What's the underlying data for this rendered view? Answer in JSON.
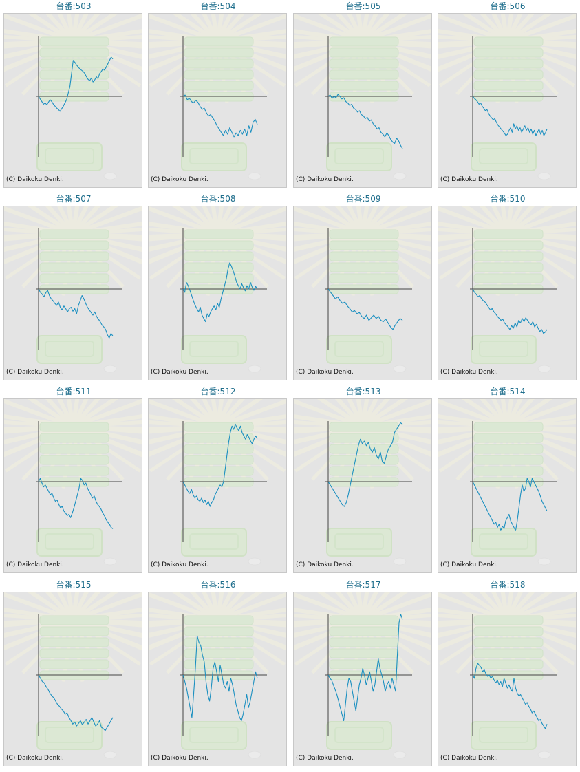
{
  "copyright": "(C) Daikoku Denki.",
  "colors": {
    "line": "#1a8fc0",
    "axis": "#444444",
    "title": "#1f6e8c",
    "panel": "#e4e4e4"
  },
  "chart_data": [
    {
      "type": "line",
      "title": "台番:503",
      "y": [
        0,
        -4,
        -8,
        -12,
        -10,
        -13,
        -9,
        -5,
        -8,
        -12,
        -15,
        -18,
        -20,
        -23,
        -19,
        -15,
        -10,
        -5,
        5,
        15,
        35,
        55,
        52,
        48,
        45,
        42,
        40,
        38,
        35,
        30,
        26,
        24,
        28,
        22,
        25,
        30,
        27,
        35,
        38,
        42,
        40,
        45,
        50,
        55,
        60,
        57
      ]
    },
    {
      "type": "line",
      "title": "台番:504",
      "y": [
        0,
        2,
        -5,
        -3,
        -8,
        -10,
        -6,
        -9,
        -15,
        -20,
        -18,
        -25,
        -30,
        -28,
        -33,
        -38,
        -45,
        -50,
        -55,
        -60,
        -52,
        -58,
        -48,
        -55,
        -62,
        -56,
        -60,
        -52,
        -58,
        -50,
        -60,
        -45,
        -55,
        -40,
        -35,
        -43
      ]
    },
    {
      "type": "line",
      "title": "台番:505",
      "y": [
        0,
        2,
        -3,
        0,
        -2,
        3,
        0,
        -4,
        -2,
        -8,
        -10,
        -14,
        -12,
        -18,
        -20,
        -24,
        -22,
        -28,
        -30,
        -34,
        -32,
        -38,
        -36,
        -42,
        -45,
        -50,
        -48,
        -55,
        -58,
        -62,
        -56,
        -60,
        -66,
        -70,
        -72,
        -64,
        -68,
        -75,
        -80
      ]
    },
    {
      "type": "line",
      "title": "台番:506",
      "y": [
        0,
        -3,
        -5,
        -8,
        -12,
        -10,
        -15,
        -18,
        -22,
        -20,
        -26,
        -30,
        -33,
        -36,
        -34,
        -40,
        -44,
        -47,
        -50,
        -53,
        -56,
        -60,
        -58,
        -52,
        -48,
        -55,
        -42,
        -50,
        -45,
        -52,
        -48,
        -55,
        -50,
        -45,
        -52,
        -48,
        -55,
        -50,
        -58,
        -52,
        -60,
        -55,
        -50,
        -58,
        -52,
        -60,
        -56,
        -50
      ]
    },
    {
      "type": "line",
      "title": "台番:507",
      "y": [
        0,
        -5,
        -8,
        -12,
        -6,
        -2,
        -10,
        -15,
        -18,
        -22,
        -25,
        -20,
        -28,
        -32,
        -26,
        -30,
        -35,
        -30,
        -28,
        -34,
        -30,
        -38,
        -25,
        -18,
        -10,
        -15,
        -22,
        -28,
        -32,
        -36,
        -40,
        -35,
        -42,
        -46,
        -50,
        -55,
        -58,
        -62,
        -70,
        -75,
        -68,
        -72
      ]
    },
    {
      "type": "line",
      "title": "台番:508",
      "y": [
        0,
        -5,
        10,
        5,
        -2,
        -10,
        -18,
        -25,
        -30,
        -35,
        -28,
        -40,
        -45,
        -50,
        -38,
        -42,
        -35,
        -30,
        -26,
        -32,
        -22,
        -28,
        -15,
        -5,
        5,
        15,
        30,
        40,
        35,
        28,
        20,
        10,
        5,
        0,
        8,
        2,
        -3,
        5,
        0,
        10,
        3,
        -2,
        4,
        0
      ]
    },
    {
      "type": "line",
      "title": "台番:509",
      "y": [
        0,
        -5,
        -10,
        -15,
        -12,
        -18,
        -22,
        -20,
        -26,
        -30,
        -35,
        -33,
        -38,
        -36,
        -42,
        -45,
        -40,
        -48,
        -44,
        -40,
        -45,
        -42,
        -48,
        -50,
        -46,
        -52,
        -58,
        -62,
        -55,
        -50,
        -45,
        -48
      ]
    },
    {
      "type": "line",
      "title": "台番:510",
      "y": [
        0,
        -5,
        -8,
        -12,
        -10,
        -15,
        -18,
        -20,
        -24,
        -28,
        -32,
        -30,
        -35,
        -38,
        -42,
        -45,
        -48,
        -46,
        -52,
        -55,
        -58,
        -62,
        -56,
        -60,
        -52,
        -58,
        -48,
        -52,
        -45,
        -50,
        -44,
        -48,
        -52,
        -55,
        -50,
        -58,
        -54,
        -60,
        -65,
        -62,
        -68,
        -66,
        -62
      ]
    },
    {
      "type": "line",
      "title": "台番:511",
      "y": [
        0,
        5,
        -2,
        -8,
        -5,
        -10,
        -15,
        -20,
        -18,
        -25,
        -30,
        -28,
        -35,
        -40,
        -38,
        -45,
        -48,
        -52,
        -50,
        -55,
        -48,
        -40,
        -30,
        -20,
        -10,
        5,
        2,
        -5,
        -2,
        -10,
        -15,
        -20,
        -25,
        -22,
        -30,
        -35,
        -38,
        -42,
        -48,
        -52,
        -58,
        -62,
        -65,
        -70,
        -72
      ]
    },
    {
      "type": "line",
      "title": "台番:512",
      "y": [
        0,
        -5,
        -10,
        -15,
        -18,
        -12,
        -20,
        -25,
        -22,
        -28,
        -30,
        -25,
        -32,
        -28,
        -35,
        -30,
        -38,
        -32,
        -28,
        -20,
        -15,
        -10,
        -5,
        -8,
        0,
        20,
        40,
        60,
        75,
        85,
        80,
        88,
        82,
        78,
        85,
        75,
        70,
        65,
        72,
        68,
        62,
        58,
        65,
        70,
        66
      ]
    },
    {
      "type": "line",
      "title": "台番:513",
      "y": [
        0,
        -5,
        -10,
        -15,
        -20,
        -25,
        -30,
        -35,
        -38,
        -32,
        -20,
        -5,
        10,
        25,
        40,
        55,
        65,
        58,
        62,
        55,
        60,
        50,
        45,
        52,
        40,
        35,
        45,
        30,
        28,
        40,
        50,
        55,
        60,
        75,
        80,
        85,
        90,
        88
      ]
    },
    {
      "type": "line",
      "title": "台番:514",
      "y": [
        0,
        -5,
        -10,
        -15,
        -20,
        -25,
        -30,
        -35,
        -40,
        -45,
        -50,
        -55,
        -60,
        -65,
        -62,
        -70,
        -65,
        -75,
        -68,
        -72,
        -60,
        -55,
        -50,
        -60,
        -65,
        -70,
        -75,
        -60,
        -40,
        -20,
        -5,
        -15,
        -10,
        5,
        0,
        -8,
        5,
        0,
        -5,
        -10,
        -15,
        -22,
        -30,
        -35,
        -40,
        -45
      ]
    },
    {
      "type": "line",
      "title": "台番:515",
      "y": [
        0,
        -5,
        -10,
        -12,
        -18,
        -22,
        -28,
        -32,
        -35,
        -40,
        -45,
        -48,
        -52,
        -55,
        -60,
        -58,
        -65,
        -70,
        -75,
        -72,
        -78,
        -74,
        -70,
        -76,
        -72,
        -68,
        -75,
        -70,
        -65,
        -72,
        -78,
        -75,
        -70,
        -80,
        -82,
        -85,
        -80,
        -75,
        -70,
        -65
      ]
    },
    {
      "type": "line",
      "title": "台番:516",
      "y": [
        0,
        -10,
        -20,
        -35,
        -50,
        -65,
        -30,
        10,
        60,
        50,
        45,
        30,
        20,
        -10,
        -30,
        -40,
        -20,
        10,
        20,
        5,
        -10,
        15,
        0,
        -15,
        -20,
        -10,
        -25,
        -5,
        -15,
        -30,
        -45,
        -55,
        -65,
        -70,
        -60,
        -45,
        -30,
        -50,
        -40,
        -25,
        -10,
        5,
        -5
      ]
    },
    {
      "type": "line",
      "title": "台番:517",
      "y": [
        0,
        -5,
        -8,
        -15,
        -22,
        -30,
        -40,
        -50,
        -60,
        -70,
        -45,
        -20,
        -5,
        -10,
        -25,
        -40,
        -55,
        -35,
        -15,
        -5,
        10,
        0,
        -15,
        -5,
        5,
        -10,
        -25,
        -15,
        5,
        25,
        10,
        0,
        -10,
        -25,
        -15,
        -10,
        -20,
        -5,
        -15,
        -25,
        30,
        80,
        95,
        85
      ]
    },
    {
      "type": "line",
      "title": "台番:518",
      "y": [
        0,
        -5,
        10,
        18,
        15,
        12,
        5,
        8,
        2,
        -2,
        0,
        -5,
        -2,
        -8,
        -12,
        -8,
        -15,
        -10,
        -18,
        -5,
        -12,
        -20,
        -15,
        -22,
        -25,
        -5,
        -20,
        -28,
        -32,
        -30,
        -35,
        -40,
        -45,
        -42,
        -48,
        -52,
        -58,
        -55,
        -60,
        -65,
        -70,
        -68,
        -74,
        -78,
        -82,
        -75
      ]
    }
  ]
}
